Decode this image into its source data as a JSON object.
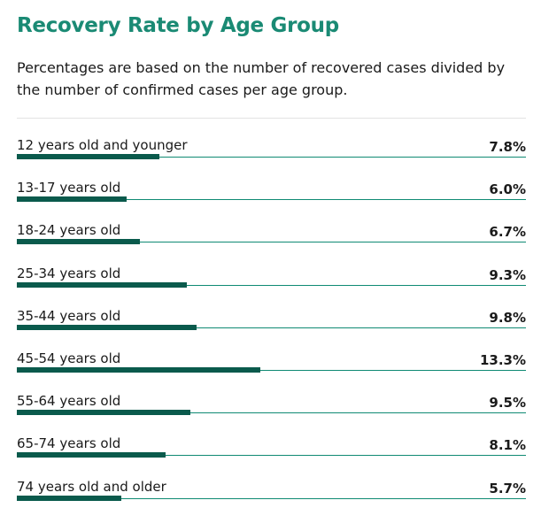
{
  "header": {
    "title": "Recovery Rate by Age Group",
    "subtitle": "Percentages are based on the number of recovered cases divided by the number of confirmed cases per age group."
  },
  "colors": {
    "title": "#1a8a74",
    "bar": "#0a5a4c",
    "line": "#0f8a73",
    "divider": "#e2e2e2"
  },
  "chart_data": {
    "type": "bar",
    "orientation": "horizontal",
    "title": "Recovery Rate by Age Group",
    "subtitle": "Percentages are based on the number of recovered cases divided by the number of confirmed cases per age group.",
    "categories": [
      "12 years old and younger",
      "13-17 years old",
      "18-24 years old",
      "25-34 years old",
      "35-44 years old",
      "45-54 years old",
      "55-64 years old",
      "65-74 years old",
      "74 years old and older"
    ],
    "values": [
      7.8,
      6.0,
      6.7,
      9.3,
      9.8,
      13.3,
      9.5,
      8.1,
      5.7
    ],
    "value_labels": [
      "7.8%",
      "6.0%",
      "6.7%",
      "9.3%",
      "9.8%",
      "13.3%",
      "9.5%",
      "8.1%",
      "5.7%"
    ],
    "unit": "%",
    "xlim": [
      0,
      27.8
    ]
  }
}
